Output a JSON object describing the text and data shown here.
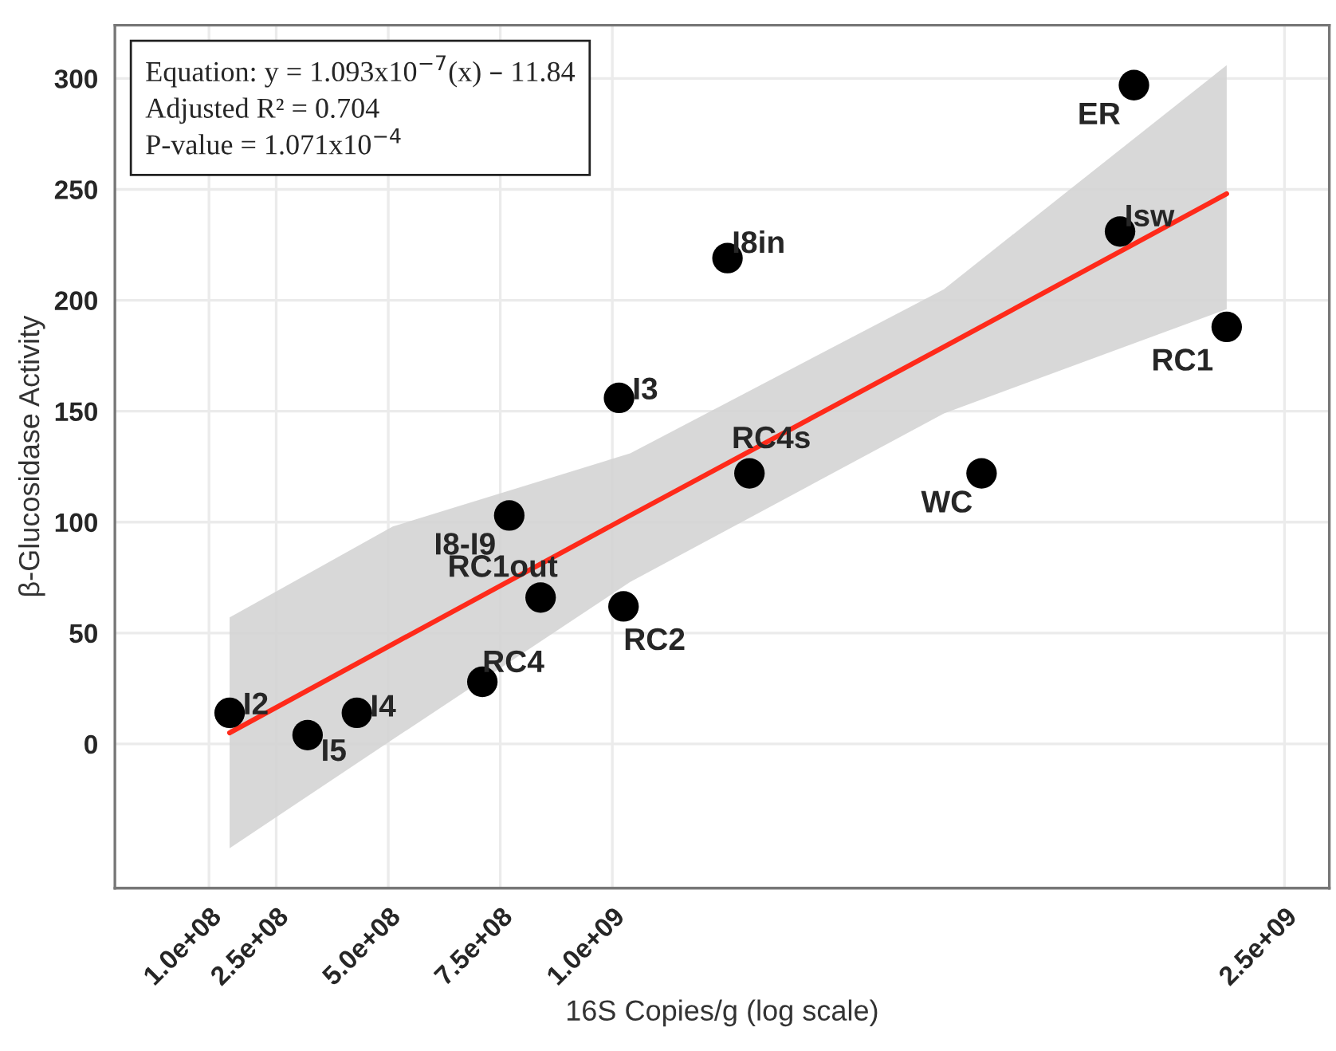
{
  "chart_data": {
    "type": "scatter",
    "xlabel": "16S Copies/g (log scale)",
    "ylabel": "β-Glucosidase Activity",
    "xlim": [
      -110000000,
      2600000000
    ],
    "xticks": [
      {
        "value": 100000000,
        "label": "1.0e+08"
      },
      {
        "value": 250000000,
        "label": "2.5e+08"
      },
      {
        "value": 500000000,
        "label": "5.0e+08"
      },
      {
        "value": 750000000,
        "label": "7.5e+08"
      },
      {
        "value": 1000000000,
        "label": "1.0e+09"
      },
      {
        "value": 2500000000,
        "label": "2.5e+09"
      }
    ],
    "ylim": [
      -65,
      324
    ],
    "yticks": [
      0,
      50,
      100,
      150,
      200,
      250,
      300
    ],
    "grid": true,
    "series": [
      {
        "marker": "circle",
        "color": "#000000",
        "x": [
          146000000,
          320000000,
          430000000,
          710000000,
          770000000,
          840000000,
          1025000000,
          1015000000,
          1257000000,
          1306000000,
          1824000000,
          2133000000,
          2164000000,
          2371000000
        ],
        "values": [
          14,
          4,
          14,
          28,
          103,
          66,
          62,
          156,
          219,
          122,
          122,
          231,
          297,
          188
        ]
      },
      {
        "type": "line",
        "marker": "none",
        "color": "#ff2a1a",
        "line_style": "solid",
        "x": [
          146000000,
          510000000,
          1040000000,
          1740000000,
          2371000000
        ],
        "values": [
          5,
          45,
          103,
          179,
          248
        ],
        "lower": [
          -47,
          2,
          73,
          149,
          196
        ],
        "upper": [
          57,
          98,
          131,
          205,
          306
        ]
      }
    ],
    "annotations": [
      "Equation: y = 1.093x10$^{−7}$(x) – 11.84",
      "Adjusted R² = 0.704",
      "P-value = 1.071x10$^{−4}$",
      {
        "text": "I2",
        "x": 146000000,
        "y": 14
      },
      {
        "text": "I5",
        "x": 320000000,
        "y": 4
      },
      {
        "text": "I4",
        "x": 430000000,
        "y": 14
      },
      {
        "text": "RC4",
        "x": 710000000,
        "y": 28
      },
      {
        "text": "I8-I9",
        "x": 770000000,
        "y": 103
      },
      {
        "text": "RC1out",
        "x": 840000000,
        "y": 66
      },
      {
        "text": "RC2",
        "x": 1025000000,
        "y": 62
      },
      {
        "text": "I3",
        "x": 1015000000,
        "y": 156
      },
      {
        "text": "I8in",
        "x": 1257000000,
        "y": 219
      },
      {
        "text": "RC4s",
        "x": 1306000000,
        "y": 122
      },
      {
        "text": "WC",
        "x": 1824000000,
        "y": 122
      },
      {
        "text": "Isw",
        "x": 2133000000,
        "y": 231
      },
      {
        "text": "ER",
        "x": 2164000000,
        "y": 297
      },
      {
        "text": "RC1",
        "x": 2371000000,
        "y": 188
      }
    ]
  }
}
